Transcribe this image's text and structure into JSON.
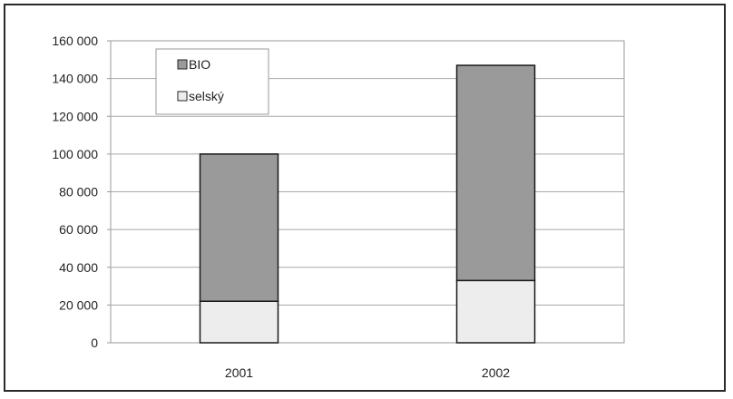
{
  "chart_data": {
    "type": "bar",
    "stacked": true,
    "categories": [
      "2001",
      "2002"
    ],
    "series": [
      {
        "name": "selský",
        "values": [
          22000,
          33000
        ],
        "color": "#ededed"
      },
      {
        "name": "BIO",
        "values": [
          78000,
          114000
        ],
        "color": "#9a9a9a"
      }
    ],
    "y_ticks": [
      "0",
      "20 000",
      "40 000",
      "60 000",
      "80 000",
      "100 000",
      "120 000",
      "140 000",
      "160 000"
    ],
    "ylim": [
      0,
      160000
    ],
    "grid": true,
    "legend_position": "top-left",
    "legend": [
      "BIO",
      "selský"
    ],
    "title": "",
    "xlabel": "",
    "ylabel": ""
  }
}
